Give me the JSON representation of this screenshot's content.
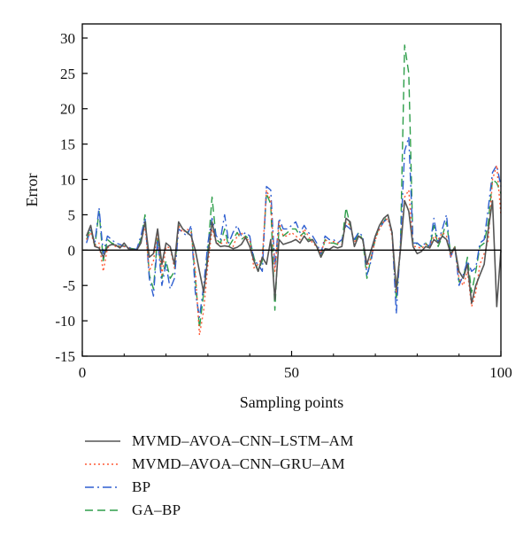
{
  "chart_data": {
    "type": "line",
    "xlabel": "Sampling points",
    "ylabel": "Error",
    "xlim": [
      0,
      100
    ],
    "ylim": [
      -15,
      32
    ],
    "xticks": [
      0,
      50,
      100
    ],
    "yticks": [
      -15,
      -10,
      -5,
      0,
      5,
      10,
      15,
      20,
      25,
      30
    ],
    "grid": false,
    "zero_line": true,
    "legend_position": "bottom",
    "x": [
      1,
      2,
      3,
      4,
      5,
      6,
      7,
      8,
      9,
      10,
      11,
      12,
      13,
      14,
      15,
      16,
      17,
      18,
      19,
      20,
      21,
      22,
      23,
      24,
      25,
      26,
      27,
      28,
      29,
      30,
      31,
      32,
      33,
      34,
      35,
      36,
      37,
      38,
      39,
      40,
      41,
      42,
      43,
      44,
      45,
      46,
      47,
      48,
      49,
      50,
      51,
      52,
      53,
      54,
      55,
      56,
      57,
      58,
      59,
      60,
      61,
      62,
      63,
      64,
      65,
      66,
      67,
      68,
      69,
      70,
      71,
      72,
      73,
      74,
      75,
      76,
      77,
      78,
      79,
      80,
      81,
      82,
      83,
      84,
      85,
      86,
      87,
      88,
      89,
      90,
      91,
      92,
      93,
      94,
      95,
      96,
      97,
      98,
      99,
      100
    ],
    "series": [
      {
        "name": "MVMD–AVOA–CNN–LSTM–AM",
        "color": "#555555",
        "dash": "",
        "values": [
          2.0,
          3.5,
          0.5,
          0.3,
          -1.0,
          0.5,
          0.8,
          0.7,
          0.3,
          1.0,
          0.2,
          0.1,
          0.0,
          1.0,
          4.0,
          -1.0,
          -0.5,
          3.0,
          -2.0,
          1.0,
          0.5,
          -2.0,
          4.0,
          3.0,
          2.5,
          2.0,
          0.0,
          -3.0,
          -6.0,
          -1.0,
          4.0,
          1.0,
          0.5,
          0.6,
          0.5,
          0.2,
          0.4,
          0.8,
          1.8,
          0.5,
          -1.5,
          -3.0,
          -1.0,
          -2.0,
          1.5,
          -7.0,
          1.5,
          0.8,
          1.0,
          1.2,
          1.5,
          1.0,
          2.0,
          1.2,
          1.5,
          0.5,
          -1.0,
          0.2,
          0.1,
          0.5,
          0.3,
          0.5,
          4.5,
          4.0,
          0.5,
          2.0,
          1.5,
          -2.0,
          0.0,
          2.0,
          3.5,
          4.5,
          5.0,
          2.5,
          -5.5,
          0.0,
          7.0,
          5.5,
          0.5,
          -0.5,
          -0.2,
          0.5,
          0.3,
          1.5,
          1.0,
          2.0,
          1.5,
          -0.5,
          0.3,
          -3.0,
          -4.0,
          -2.0,
          -7.5,
          -5.0,
          -3.5,
          -2.0,
          3.0,
          7.0,
          -8.0,
          0.0
        ]
      },
      {
        "name": "MVMD–AVOA–CNN–GRU–AM",
        "color": "#ff5a36",
        "dash": "2,3",
        "values": [
          1.5,
          2.5,
          0.6,
          1.0,
          -3.0,
          0.3,
          0.8,
          0.5,
          0.5,
          0.5,
          0.3,
          0.0,
          0.0,
          1.0,
          3.5,
          -3.0,
          -1.5,
          2.5,
          -3.5,
          0.5,
          0.3,
          -2.5,
          3.5,
          2.5,
          3.0,
          2.5,
          -3.0,
          -12.0,
          -8.5,
          -2.0,
          3.0,
          1.0,
          0.8,
          1.5,
          0.5,
          0.5,
          2.0,
          2.5,
          1.5,
          1.5,
          -2.5,
          -2.0,
          -1.0,
          8.5,
          7.0,
          -3.0,
          4.0,
          2.0,
          2.0,
          2.5,
          2.0,
          1.5,
          3.0,
          2.0,
          1.0,
          0.5,
          -0.5,
          1.5,
          1.0,
          1.2,
          1.0,
          0.8,
          4.0,
          3.5,
          1.0,
          2.0,
          1.5,
          -2.5,
          -1.0,
          1.5,
          3.0,
          4.0,
          4.5,
          2.0,
          -6.0,
          0.5,
          7.5,
          8.5,
          0.5,
          0.5,
          0.2,
          0.8,
          0.5,
          2.0,
          1.5,
          2.5,
          2.0,
          -1.0,
          0.5,
          -4.0,
          -5.0,
          -3.0,
          -8.0,
          -6.0,
          -2.0,
          -0.5,
          1.5,
          10.0,
          12.0,
          5.0
        ]
      },
      {
        "name": "BP",
        "color": "#2f5fd0",
        "dash": "10,4,2,4",
        "values": [
          1.0,
          3.0,
          1.0,
          6.0,
          -0.5,
          2.0,
          1.5,
          1.0,
          0.8,
          0.5,
          0.4,
          0.2,
          0.1,
          2.0,
          4.5,
          -4.0,
          -6.5,
          1.5,
          -5.0,
          -2.0,
          -5.5,
          -4.0,
          3.0,
          2.5,
          2.0,
          3.5,
          -6.0,
          -9.5,
          -5.0,
          1.0,
          4.5,
          2.0,
          1.5,
          5.0,
          1.0,
          2.5,
          3.5,
          2.0,
          2.5,
          2.0,
          -1.5,
          -2.0,
          -3.0,
          9.0,
          8.5,
          -2.5,
          4.5,
          3.0,
          3.0,
          3.5,
          4.0,
          2.5,
          3.5,
          2.5,
          2.0,
          1.0,
          -0.5,
          2.0,
          1.5,
          1.5,
          1.0,
          1.5,
          3.5,
          3.0,
          1.5,
          2.5,
          2.0,
          -3.5,
          -1.5,
          2.0,
          3.0,
          4.0,
          4.5,
          2.5,
          -9.0,
          1.0,
          14.0,
          16.0,
          1.0,
          1.0,
          0.5,
          1.0,
          0.5,
          4.5,
          1.0,
          3.0,
          5.0,
          -1.0,
          0.5,
          -5.0,
          -3.5,
          -1.5,
          -3.0,
          -2.5,
          1.0,
          1.5,
          6.0,
          11.0,
          12.0,
          9.0
        ]
      },
      {
        "name": "GA–BP",
        "color": "#2e9e4a",
        "dash": "9,5",
        "values": [
          1.5,
          3.0,
          0.5,
          5.5,
          -1.5,
          1.5,
          1.0,
          0.8,
          0.5,
          0.6,
          0.3,
          0.2,
          0.1,
          1.5,
          5.0,
          -3.5,
          -5.5,
          2.0,
          -4.0,
          -1.5,
          -4.0,
          -3.0,
          3.5,
          3.0,
          2.5,
          3.0,
          -4.0,
          -11.0,
          -6.0,
          0.0,
          7.5,
          1.5,
          1.0,
          3.0,
          0.5,
          1.5,
          2.5,
          1.5,
          2.0,
          1.5,
          -1.0,
          -3.0,
          -1.5,
          8.0,
          6.5,
          -8.5,
          3.5,
          2.0,
          2.5,
          3.0,
          3.0,
          2.0,
          2.5,
          1.5,
          1.5,
          0.5,
          -1.0,
          1.5,
          1.0,
          1.0,
          0.8,
          1.0,
          6.0,
          3.5,
          1.0,
          2.5,
          1.5,
          -4.0,
          -1.0,
          1.5,
          3.5,
          4.0,
          5.0,
          2.5,
          -7.0,
          0.5,
          29.0,
          25.0,
          0.5,
          1.0,
          0.5,
          1.0,
          0.3,
          3.5,
          0.5,
          2.0,
          4.0,
          -0.5,
          0.5,
          -4.5,
          -4.0,
          -1.0,
          -6.0,
          -3.0,
          0.5,
          1.0,
          4.0,
          10.0,
          9.5,
          8.0
        ]
      }
    ]
  }
}
